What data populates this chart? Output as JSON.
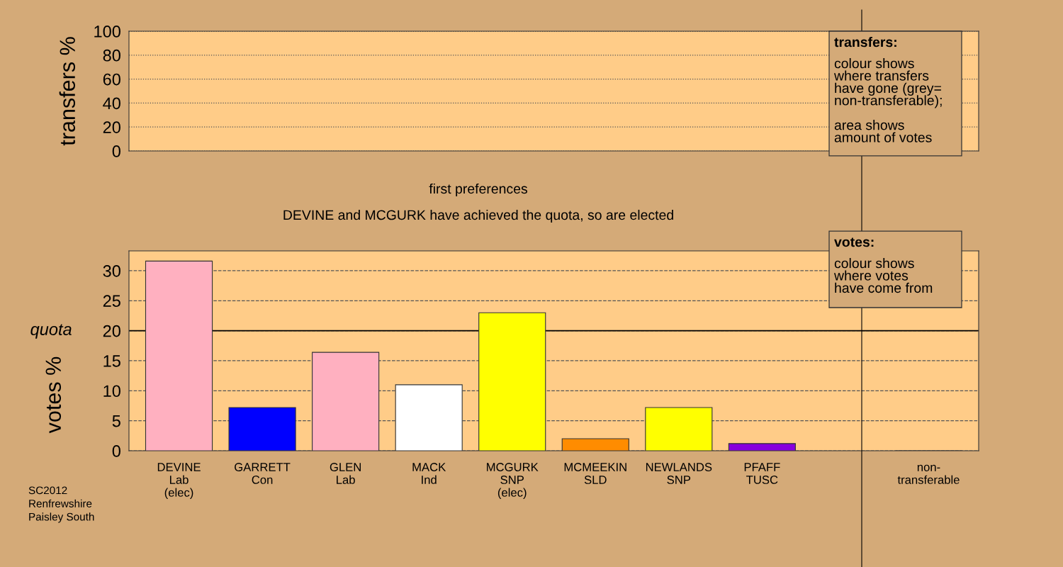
{
  "chart_data": [
    {
      "type": "bar",
      "ylabel": "transfers %",
      "categories": [
        null,
        null,
        null,
        null,
        null,
        null,
        null,
        null,
        null,
        null
      ],
      "values": [
        null,
        null,
        null,
        null,
        null,
        null,
        null,
        null,
        null,
        null
      ],
      "ylim": [
        0,
        100
      ],
      "yticks": [
        0,
        20,
        40,
        60,
        80,
        100
      ],
      "grid": "y",
      "tick_labels": "y",
      "annotations": [
        "transfers:",
        "colour shows\nwhere transfers\nhave gone (grey=\nnon-transferable);\n\narea shows\namount of votes"
      ]
    },
    {
      "type": "bar",
      "title": "first preferences",
      "subtitle": "DEVINE and MCGURK have achieved the quota, so are elected",
      "ylabel": "votes %",
      "categories": [
        "DEVINE\nLab\n(elec)",
        "GARRETT\nCon",
        "GLEN\nLab",
        "MACK\nInd",
        "MCGURK\nSNP\n(elec)",
        "MCMEEKIN\nSLD",
        "NEWLANDS\nSNP",
        "PFAFF\nTUSC",
        null,
        "non-\ntransferable"
      ],
      "values": [
        31.6,
        7.2,
        16.4,
        11.0,
        23.0,
        2.0,
        7.2,
        1.2,
        null,
        0
      ],
      "colors": [
        "#ffb0c0",
        "#0000ff",
        "#ffb0c0",
        "#ffffff",
        "#ffff00",
        "#ff8c00",
        "#ffff00",
        "#8800dd",
        "#888888",
        "#888888"
      ],
      "ylim": [
        0,
        33.3
      ],
      "yticks": [
        0,
        5,
        10,
        15,
        20,
        25,
        30
      ],
      "grid": "y",
      "ref_lines": [
        {
          "axis": "y",
          "value": 20,
          "label": "quota",
          "color": "#000000"
        }
      ],
      "annotations": [
        "votes:",
        "colour shows\nwhere votes\nhave come from",
        "SC2012\nRenfrewshire\nPaisley South"
      ]
    }
  ]
}
